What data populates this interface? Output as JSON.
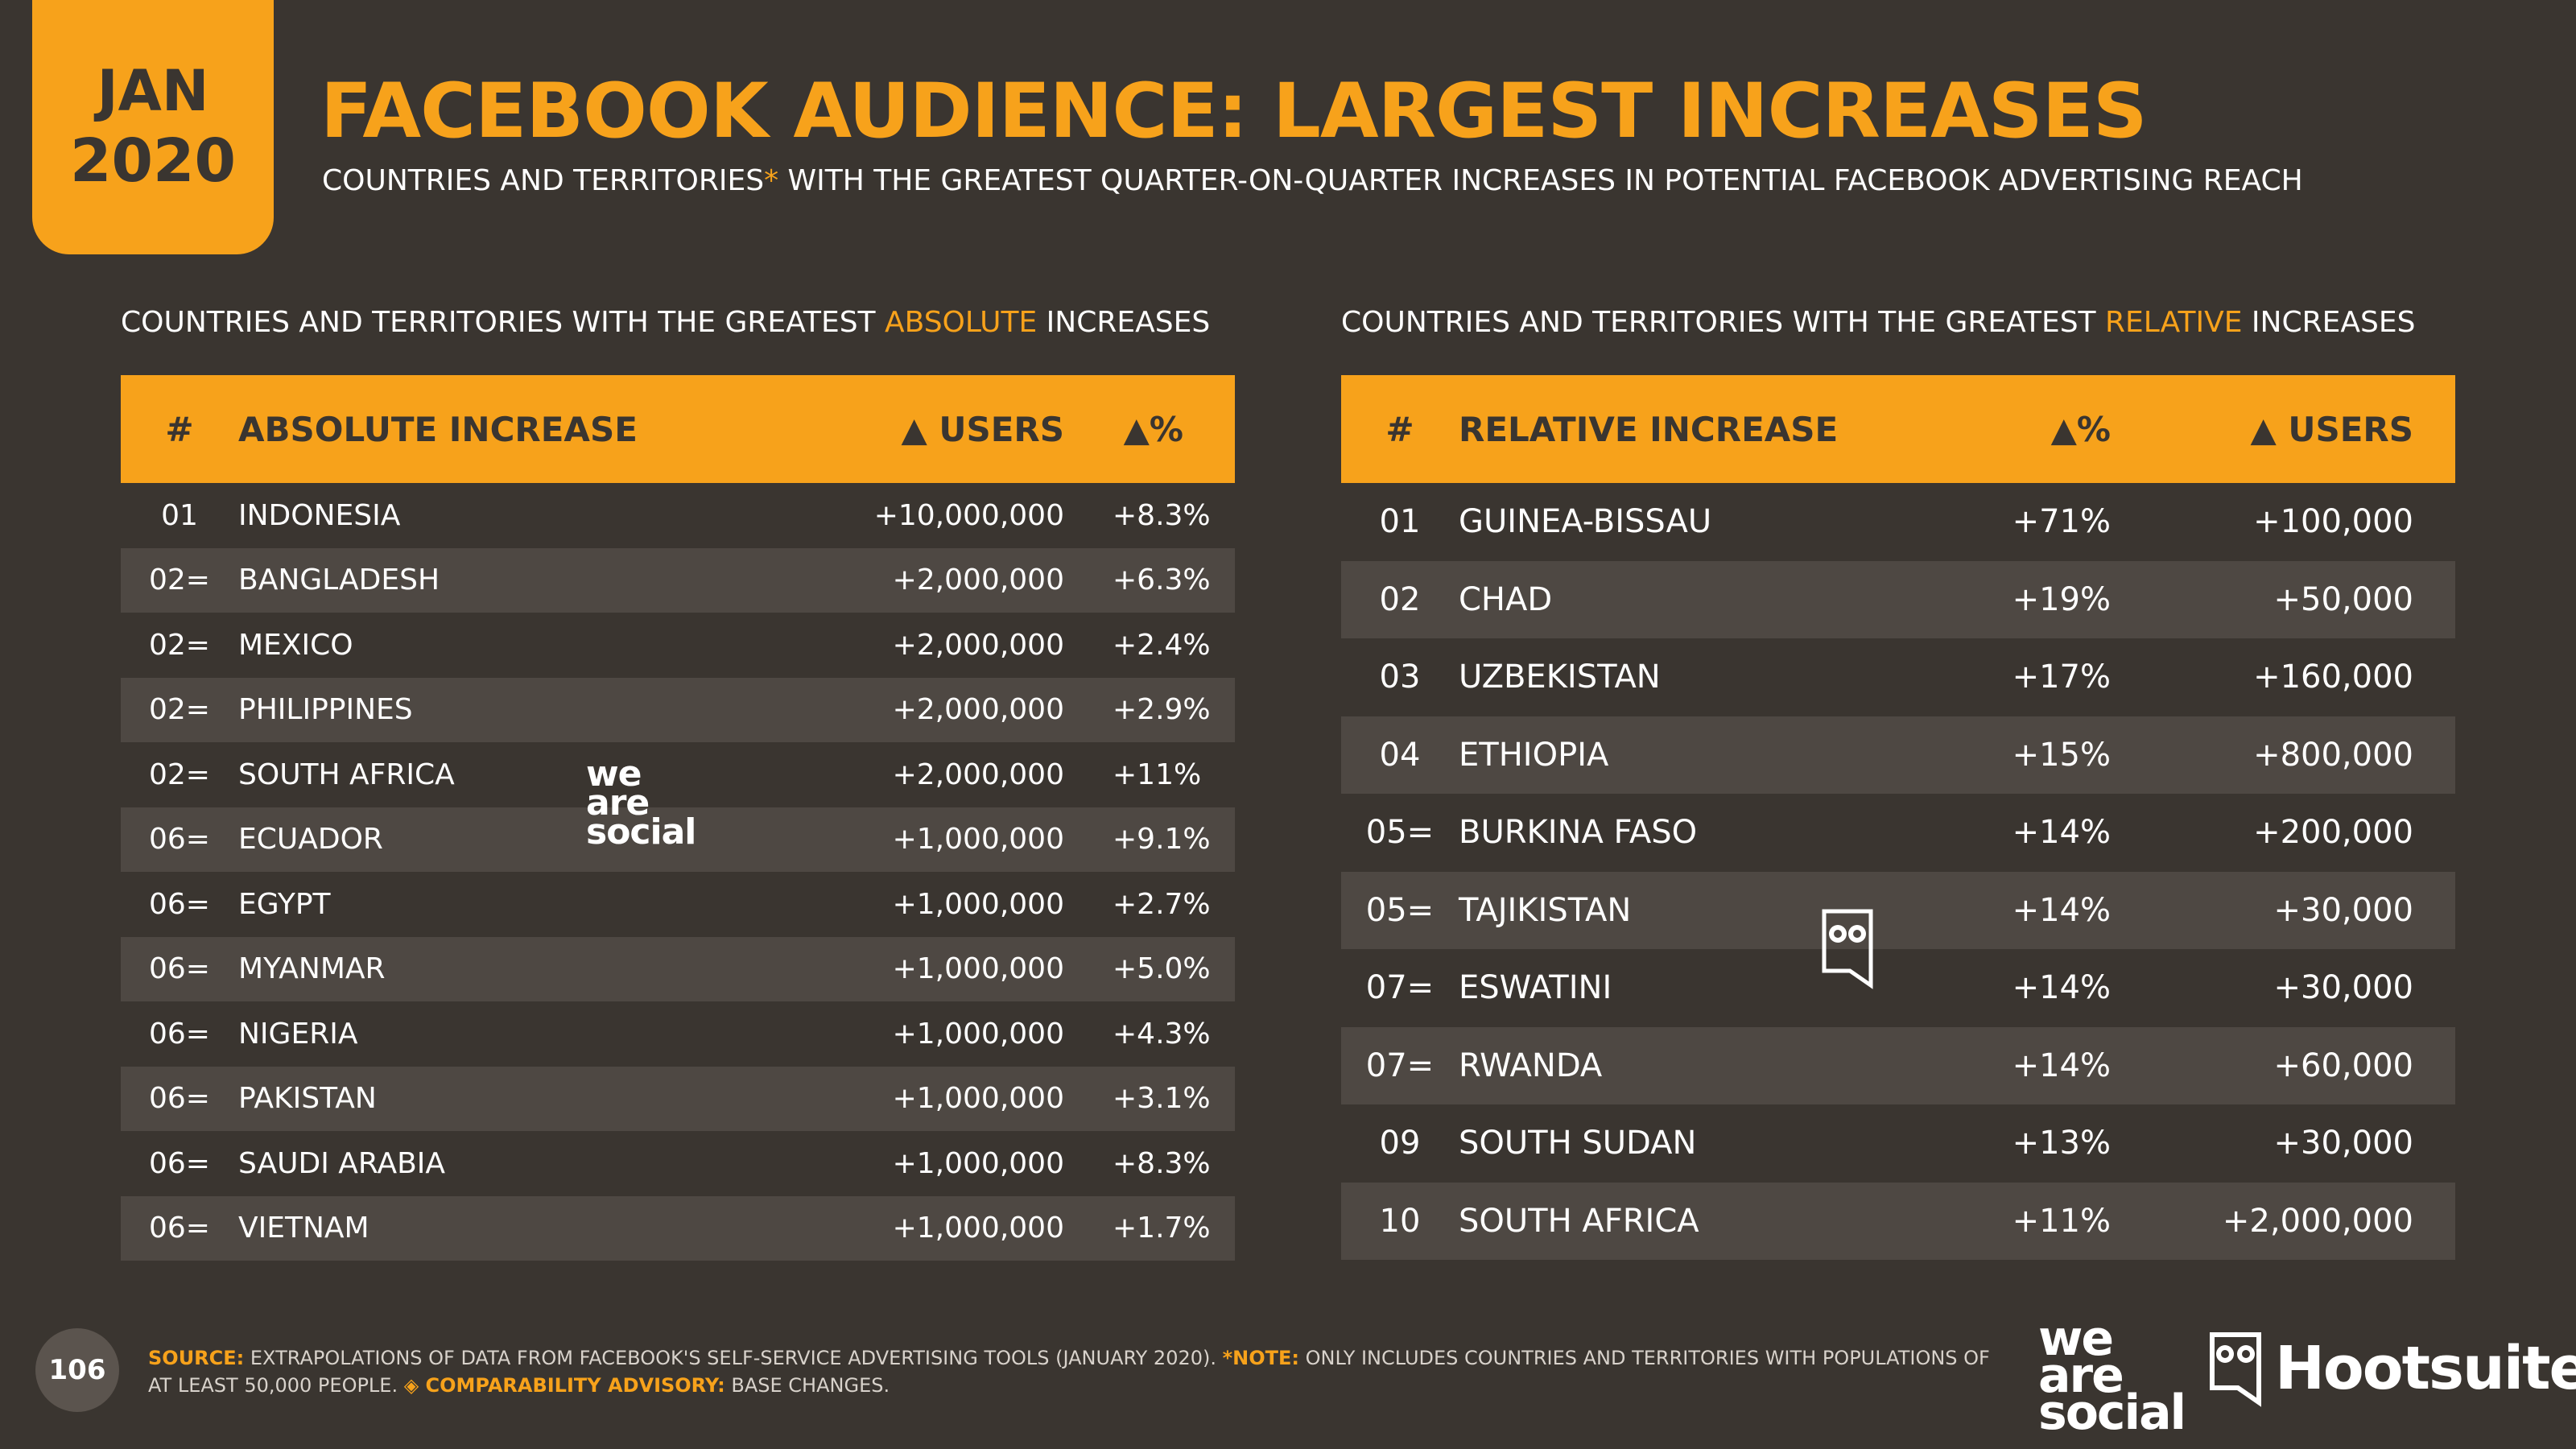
{
  "badge": {
    "month": "JAN",
    "year": "2020"
  },
  "title": "FACEBOOK AUDIENCE: LARGEST INCREASES",
  "subtitle": {
    "pre": "COUNTRIES AND TERRITORIES",
    "asterisk": "*",
    "post": " WITH THE GREATEST QUARTER-ON-QUARTER INCREASES IN POTENTIAL FACEBOOK ADVERTISING REACH"
  },
  "absolute": {
    "heading_pre": "COUNTRIES AND TERRITORIES WITH THE GREATEST ",
    "heading_hl": "ABSOLUTE",
    "heading_post": " INCREASES",
    "columns": [
      "#",
      "ABSOLUTE INCREASE",
      "▲ USERS",
      "▲%"
    ],
    "rows": [
      {
        "rank": "01",
        "country": "INDONESIA",
        "users": "+10,000,000",
        "pct": "+8.3%"
      },
      {
        "rank": "02=",
        "country": "BANGLADESH",
        "users": "+2,000,000",
        "pct": "+6.3%"
      },
      {
        "rank": "02=",
        "country": "MEXICO",
        "users": "+2,000,000",
        "pct": "+2.4%"
      },
      {
        "rank": "02=",
        "country": "PHILIPPINES",
        "users": "+2,000,000",
        "pct": "+2.9%"
      },
      {
        "rank": "02=",
        "country": "SOUTH AFRICA",
        "users": "+2,000,000",
        "pct": "+11%"
      },
      {
        "rank": "06=",
        "country": "ECUADOR",
        "users": "+1,000,000",
        "pct": "+9.1%"
      },
      {
        "rank": "06=",
        "country": "EGYPT",
        "users": "+1,000,000",
        "pct": "+2.7%"
      },
      {
        "rank": "06=",
        "country": "MYANMAR",
        "users": "+1,000,000",
        "pct": "+5.0%"
      },
      {
        "rank": "06=",
        "country": "NIGERIA",
        "users": "+1,000,000",
        "pct": "+4.3%"
      },
      {
        "rank": "06=",
        "country": "PAKISTAN",
        "users": "+1,000,000",
        "pct": "+3.1%"
      },
      {
        "rank": "06=",
        "country": "SAUDI ARABIA",
        "users": "+1,000,000",
        "pct": "+8.3%"
      },
      {
        "rank": "06=",
        "country": "VIETNAM",
        "users": "+1,000,000",
        "pct": "+1.7%"
      }
    ]
  },
  "relative": {
    "heading_pre": "COUNTRIES AND TERRITORIES WITH THE GREATEST ",
    "heading_hl": "RELATIVE",
    "heading_post": " INCREASES",
    "columns": [
      "#",
      "RELATIVE INCREASE",
      "▲%",
      "▲ USERS"
    ],
    "rows": [
      {
        "rank": "01",
        "country": "GUINEA-BISSAU",
        "pct": "+71%",
        "users": "+100,000"
      },
      {
        "rank": "02",
        "country": "CHAD",
        "pct": "+19%",
        "users": "+50,000"
      },
      {
        "rank": "03",
        "country": "UZBEKISTAN",
        "pct": "+17%",
        "users": "+160,000"
      },
      {
        "rank": "04",
        "country": "ETHIOPIA",
        "pct": "+15%",
        "users": "+800,000"
      },
      {
        "rank": "05=",
        "country": "BURKINA FASO",
        "pct": "+14%",
        "users": "+200,000"
      },
      {
        "rank": "05=",
        "country": "TAJIKISTAN",
        "pct": "+14%",
        "users": "+30,000"
      },
      {
        "rank": "07=",
        "country": "ESWATINI",
        "pct": "+14%",
        "users": "+30,000"
      },
      {
        "rank": "07=",
        "country": "RWANDA",
        "pct": "+14%",
        "users": "+60,000"
      },
      {
        "rank": "09",
        "country": "SOUTH SUDAN",
        "pct": "+13%",
        "users": "+30,000"
      },
      {
        "rank": "10",
        "country": "SOUTH AFRICA",
        "pct": "+11%",
        "users": "+2,000,000"
      }
    ]
  },
  "watermark": {
    "line1": "we",
    "line2": "are",
    "line3": "social"
  },
  "page_number": "106",
  "footer": {
    "source_label": "SOURCE:",
    "source_text": " EXTRAPOLATIONS OF DATA FROM FACEBOOK'S SELF-SERVICE ADVERTISING TOOLS (JANUARY 2020). ",
    "note_label": "*NOTE:",
    "note_text": " ONLY INCLUDES COUNTRIES AND TERRITORIES WITH POPULATIONS OF AT LEAST 50,000 PEOPLE. ",
    "advisory_label": "◈ COMPARABILITY ADVISORY:",
    "advisory_text": " BASE CHANGES."
  },
  "logos": {
    "was_1": "we",
    "was_2": "are",
    "was_3": "social",
    "hootsuite": "Hootsuite®"
  },
  "colors": {
    "accent": "#f7a21b",
    "background": "#3a3530",
    "row_alt": "#4e4843"
  }
}
